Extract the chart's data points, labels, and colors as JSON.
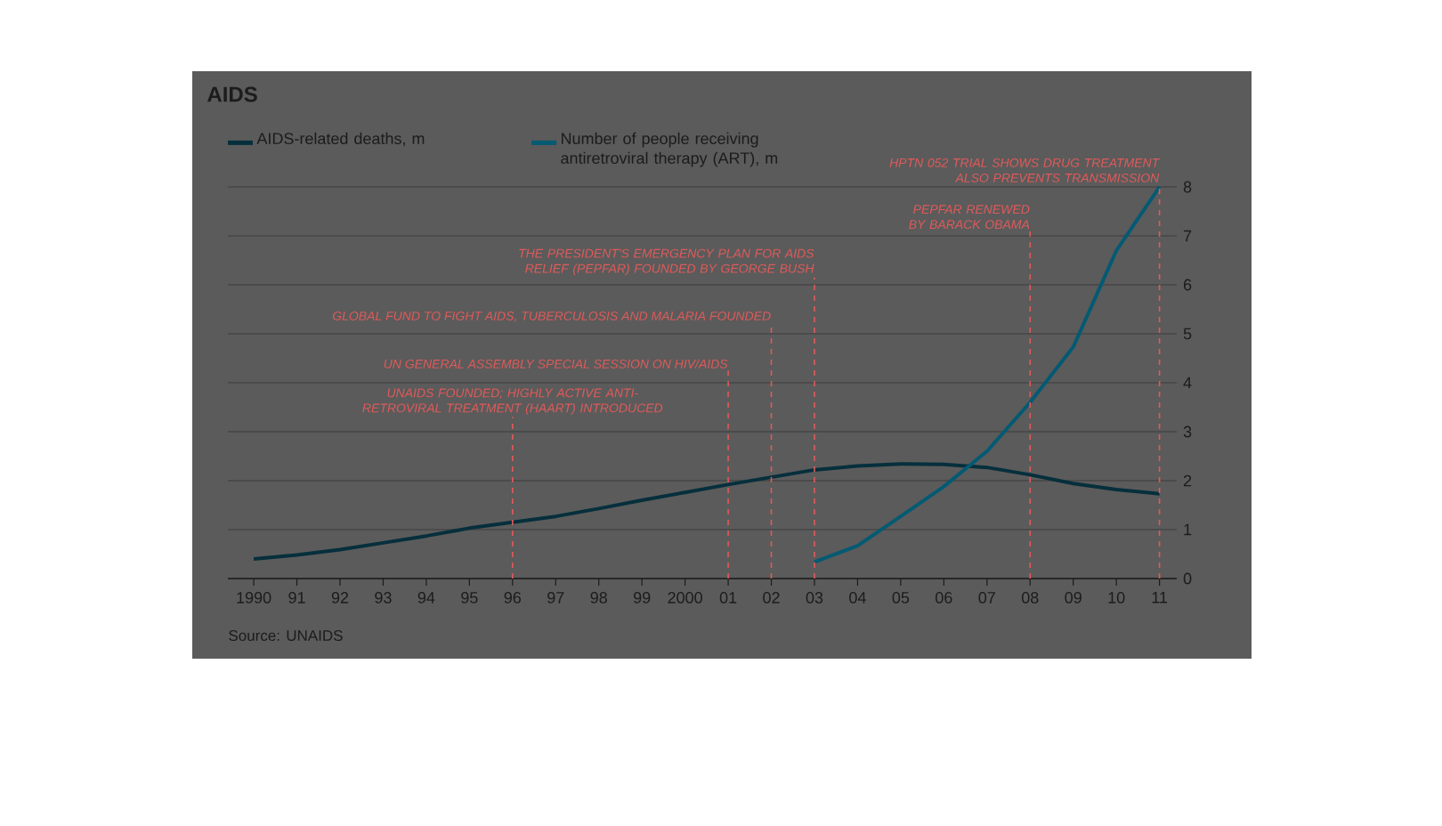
{
  "chart_data": {
    "type": "line",
    "title": "AIDS",
    "x": [
      1990,
      1991,
      1992,
      1993,
      1994,
      1995,
      1996,
      1997,
      1998,
      1999,
      2000,
      2001,
      2002,
      2003,
      2004,
      2005,
      2006,
      2007,
      2008,
      2009,
      2010,
      2011
    ],
    "series": [
      {
        "name": "AIDS-related deaths, m",
        "color": "#062f3c",
        "values": [
          0.4,
          0.48,
          0.59,
          0.73,
          0.87,
          1.03,
          1.15,
          1.27,
          1.43,
          1.6,
          1.76,
          1.92,
          2.07,
          2.22,
          2.3,
          2.34,
          2.33,
          2.27,
          2.12,
          1.94,
          1.82,
          1.73
        ]
      },
      {
        "name": "Number of people receiving antiretroviral therapy (ART), m",
        "color": "#035a73",
        "x": [
          2003,
          2004,
          2005,
          2006,
          2007,
          2008,
          2009,
          2010,
          2011
        ],
        "values": [
          0.34,
          0.67,
          1.27,
          1.88,
          2.6,
          3.6,
          4.73,
          6.7,
          8.0
        ]
      }
    ],
    "xlim": [
      1989.4,
      2011.4
    ],
    "xticks": [
      {
        "value": 1990,
        "label": "1990"
      },
      {
        "value": 1991,
        "label": "91"
      },
      {
        "value": 1992,
        "label": "92"
      },
      {
        "value": 1993,
        "label": "93"
      },
      {
        "value": 1994,
        "label": "94"
      },
      {
        "value": 1995,
        "label": "95"
      },
      {
        "value": 1996,
        "label": "96"
      },
      {
        "value": 1997,
        "label": "97"
      },
      {
        "value": 1998,
        "label": "98"
      },
      {
        "value": 1999,
        "label": "99"
      },
      {
        "value": 2000,
        "label": "2000"
      },
      {
        "value": 2001,
        "label": "01"
      },
      {
        "value": 2002,
        "label": "02"
      },
      {
        "value": 2003,
        "label": "03"
      },
      {
        "value": 2004,
        "label": "04"
      },
      {
        "value": 2005,
        "label": "05"
      },
      {
        "value": 2006,
        "label": "06"
      },
      {
        "value": 2007,
        "label": "07"
      },
      {
        "value": 2008,
        "label": "08"
      },
      {
        "value": 2009,
        "label": "09"
      },
      {
        "value": 2010,
        "label": "10"
      },
      {
        "value": 2011,
        "label": "11"
      }
    ],
    "ylim": [
      0,
      8
    ],
    "yticks": [
      0,
      1,
      2,
      3,
      4,
      5,
      6,
      7,
      8
    ],
    "grid": "y",
    "legend": "top left",
    "marker": "none",
    "ref_lines": [
      {
        "axis": "x",
        "value": 1996,
        "label": "UNAIDS FOUNDED; HIGHLY ACTIVE ANTI-RETROVIRAL TREATMENT (HAART) INTRODUCED",
        "color": "#e05a5a",
        "line_style": "dashed"
      },
      {
        "axis": "x",
        "value": 2001,
        "label": "UN GENERAL ASSEMBLY SPECIAL SESSION ON HIV/AIDS",
        "color": "#e05a5a",
        "line_style": "dashed"
      },
      {
        "axis": "x",
        "value": 2002,
        "label": "GLOBAL FUND TO FIGHT AIDS, TUBERCULOSIS AND MALARIA FOUNDED",
        "color": "#e05a5a",
        "line_style": "dashed"
      },
      {
        "axis": "x",
        "value": 2003,
        "label": "THE PRESIDENT'S EMERGENCY PLAN FOR AIDS RELIEF (PEPFAR) FOUNDED BY GEORGE BUSH",
        "color": "#e05a5a",
        "line_style": "dashed"
      },
      {
        "axis": "x",
        "value": 2008,
        "label": "PEPFAR RENEWED BY BARACK OBAMA",
        "color": "#e05a5a",
        "line_style": "dashed"
      },
      {
        "axis": "x",
        "value": 2011,
        "label": "HPTN 052 TRIAL SHOWS DRUG TREATMENT ALSO PREVENTS TRANSMISSION",
        "color": "#e05a5a",
        "line_style": "dashed"
      }
    ],
    "annotations": [
      "Source: UNAIDS"
    ]
  }
}
